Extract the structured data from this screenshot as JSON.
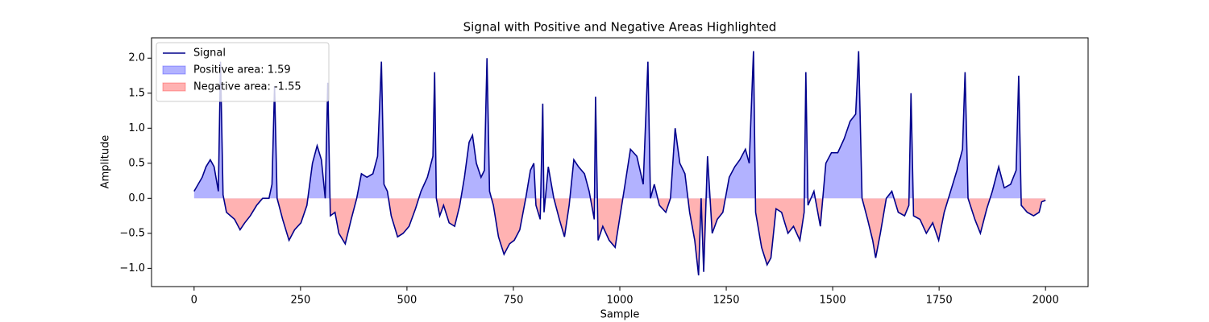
{
  "chart_data": {
    "type": "line",
    "title": "Signal with Positive and Negative Areas Highlighted",
    "xlabel": "Sample",
    "ylabel": "Amplitude",
    "x": [
      0,
      19,
      28,
      38,
      47,
      57,
      62,
      68,
      76,
      95,
      108,
      119,
      132,
      147,
      161,
      176,
      183,
      189,
      195,
      208,
      223,
      236,
      251,
      265,
      278,
      289,
      299,
      308,
      314,
      320,
      331,
      340,
      355,
      369,
      382,
      393,
      406,
      420,
      431,
      440,
      446,
      454,
      463,
      478,
      491,
      505,
      520,
      533,
      548,
      561,
      565,
      569,
      577,
      586,
      599,
      612,
      624,
      635,
      646,
      654,
      663,
      674,
      682,
      688,
      694,
      703,
      715,
      728,
      741,
      752,
      765,
      779,
      790,
      798,
      803,
      813,
      819,
      822,
      832,
      845,
      858,
      870,
      881,
      892,
      903,
      917,
      928,
      940,
      943,
      949,
      960,
      975,
      989,
      998,
      1011,
      1025,
      1040,
      1055,
      1066,
      1072,
      1081,
      1093,
      1108,
      1119,
      1130,
      1141,
      1153,
      1164,
      1176,
      1185,
      1191,
      1197,
      1206,
      1217,
      1229,
      1242,
      1257,
      1270,
      1282,
      1295,
      1304,
      1314,
      1319,
      1333,
      1346,
      1355,
      1367,
      1380,
      1395,
      1408,
      1423,
      1433,
      1437,
      1442,
      1456,
      1471,
      1484,
      1497,
      1512,
      1527,
      1541,
      1554,
      1561,
      1569,
      1582,
      1594,
      1601,
      1612,
      1626,
      1639,
      1654,
      1669,
      1679,
      1684,
      1690,
      1705,
      1720,
      1735,
      1749,
      1762,
      1777,
      1792,
      1805,
      1811,
      1818,
      1834,
      1847,
      1862,
      1875,
      1890,
      1903,
      1918,
      1931,
      1937,
      1943,
      1957,
      1972,
      1985,
      1991,
      2000
    ],
    "series": [
      {
        "name": "Signal",
        "color": "#00008b",
        "values": [
          0.1,
          0.3,
          0.45,
          0.55,
          0.45,
          0.1,
          1.95,
          0.05,
          -0.2,
          -0.3,
          -0.45,
          -0.35,
          -0.25,
          -0.1,
          0.0,
          0.0,
          0.2,
          1.6,
          0.0,
          -0.3,
          -0.6,
          -0.45,
          -0.35,
          -0.1,
          0.5,
          0.75,
          0.55,
          0.0,
          1.65,
          -0.25,
          -0.2,
          -0.5,
          -0.65,
          -0.3,
          0.0,
          0.35,
          0.3,
          0.35,
          0.6,
          1.95,
          0.2,
          0.1,
          -0.25,
          -0.55,
          -0.5,
          -0.4,
          -0.15,
          0.1,
          0.3,
          0.6,
          1.8,
          0.0,
          -0.25,
          -0.1,
          -0.35,
          -0.4,
          -0.1,
          0.3,
          0.8,
          0.9,
          0.5,
          0.3,
          0.4,
          2.0,
          0.1,
          -0.1,
          -0.55,
          -0.8,
          -0.65,
          -0.6,
          -0.45,
          0.0,
          0.4,
          0.5,
          -0.1,
          -0.3,
          1.35,
          -0.2,
          0.45,
          0.0,
          -0.3,
          -0.55,
          -0.1,
          0.55,
          0.45,
          0.35,
          0.1,
          -0.3,
          1.45,
          -0.6,
          -0.4,
          -0.6,
          -0.7,
          -0.35,
          0.15,
          0.7,
          0.6,
          0.2,
          1.95,
          0.0,
          0.2,
          -0.1,
          -0.2,
          0.0,
          1.0,
          0.5,
          0.35,
          -0.2,
          -0.6,
          -1.1,
          0.0,
          -1.05,
          0.6,
          -0.5,
          -0.3,
          -0.2,
          0.3,
          0.45,
          0.55,
          0.7,
          0.5,
          2.1,
          -0.2,
          -0.7,
          -0.95,
          -0.85,
          -0.15,
          -0.2,
          -0.5,
          -0.4,
          -0.6,
          -0.2,
          1.8,
          -0.1,
          0.1,
          -0.4,
          0.5,
          0.65,
          0.65,
          0.85,
          1.1,
          1.2,
          2.1,
          0.0,
          -0.3,
          -0.6,
          -0.85,
          -0.5,
          0.0,
          0.1,
          -0.2,
          -0.25,
          -0.1,
          1.5,
          -0.25,
          -0.3,
          -0.5,
          -0.35,
          -0.6,
          -0.2,
          0.1,
          0.4,
          0.7,
          1.8,
          0.0,
          -0.3,
          -0.5,
          -0.15,
          0.1,
          0.45,
          0.15,
          0.2,
          0.4,
          1.75,
          -0.1,
          -0.2,
          -0.25,
          -0.2,
          -0.05,
          -0.03
        ]
      }
    ],
    "fills": [
      {
        "name": "Positive area: 1.59",
        "color": "#0000ff",
        "where": "above"
      },
      {
        "name": "Negative area: -1.55",
        "color": "#ff0000",
        "where": "below"
      }
    ],
    "xlim": [
      -100,
      2100
    ],
    "xticks": [
      0,
      250,
      500,
      750,
      1000,
      1250,
      1500,
      1750,
      2000
    ],
    "ylim": [
      -1.26,
      2.29
    ],
    "yticks": [
      {
        "value": -1.0,
        "label": "−1.0"
      },
      {
        "value": -0.5,
        "label": "−0.5"
      },
      {
        "value": 0.0,
        "label": "0.0"
      },
      {
        "value": 0.5,
        "label": "0.5"
      },
      {
        "value": 1.0,
        "label": "1.0"
      },
      {
        "value": 1.5,
        "label": "1.5"
      },
      {
        "value": 2.0,
        "label": "2.0"
      }
    ],
    "legend": "upper left"
  }
}
